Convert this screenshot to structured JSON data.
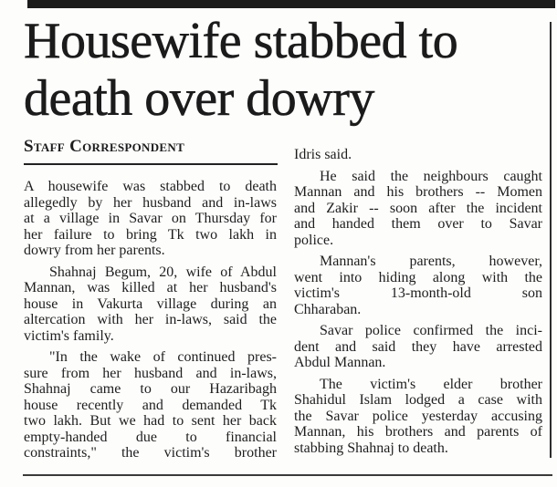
{
  "page": {
    "kind": "newspaper-clipping",
    "colors": {
      "background": "#fdfdfc",
      "ink": "#1e1e1e",
      "headline_ink": "#1b1b1b",
      "rule": "#2e2e2e",
      "top_bar": "#1c1c1c"
    }
  },
  "article": {
    "headline": {
      "text": "Housewife stabbed to death over dowry",
      "lines": [
        "Housewife stabbed to",
        "death over dowry"
      ]
    },
    "byline": "Staff Correspondent",
    "columns": [
      {
        "paragraphs": [
          {
            "indent": false,
            "continues": false,
            "lines": [
              "A housewife was stabbed to death",
              "allegedly by her husband and in-laws",
              "at a village in Savar on Thursday for",
              "her failure to bring Tk two lakh in",
              "dowry from her parents."
            ]
          },
          {
            "indent": true,
            "continues": false,
            "lines": [
              "Shahnaj Begum, 20, wife of Abdul",
              "Mannan, was killed at her husband's",
              "house in Vakurta village during an",
              "altercation with her in-laws, said the",
              "victim's family."
            ]
          },
          {
            "indent": true,
            "continues": true,
            "lines": [
              "\"In the wake of continued pres-",
              "sure from her husband and in-laws,",
              "Shahnaj came to our Hazaribagh",
              "house recently and demanded Tk",
              "two lakh. But we had to sent her back",
              "empty-handed due to financial",
              "constraints,\" the victim's brother"
            ]
          }
        ]
      },
      {
        "paragraphs": [
          {
            "indent": false,
            "continues": false,
            "lines": [
              "Idris said."
            ]
          },
          {
            "indent": true,
            "continues": false,
            "lines": [
              "He said the neighbours caught",
              "Mannan and his brothers -- Momen",
              "and Zakir -- soon after the incident",
              "and handed them over to Savar",
              "police."
            ]
          },
          {
            "indent": true,
            "continues": false,
            "lines": [
              "Mannan's parents, however,",
              "went into hiding along with the",
              "victim's 13-month-old son",
              "Chharaban."
            ]
          },
          {
            "indent": true,
            "continues": false,
            "lines": [
              "Savar police confirmed the inci-",
              "dent and said they have arrested",
              "Abdul Mannan."
            ]
          },
          {
            "indent": true,
            "continues": false,
            "lines": [
              "The victim's elder brother",
              "Shahidul Islam lodged a case with",
              "the Savar police yesterday accusing",
              "Mannan, his brothers and parents of",
              "stabbing Shahnaj to death."
            ]
          }
        ]
      }
    ]
  }
}
